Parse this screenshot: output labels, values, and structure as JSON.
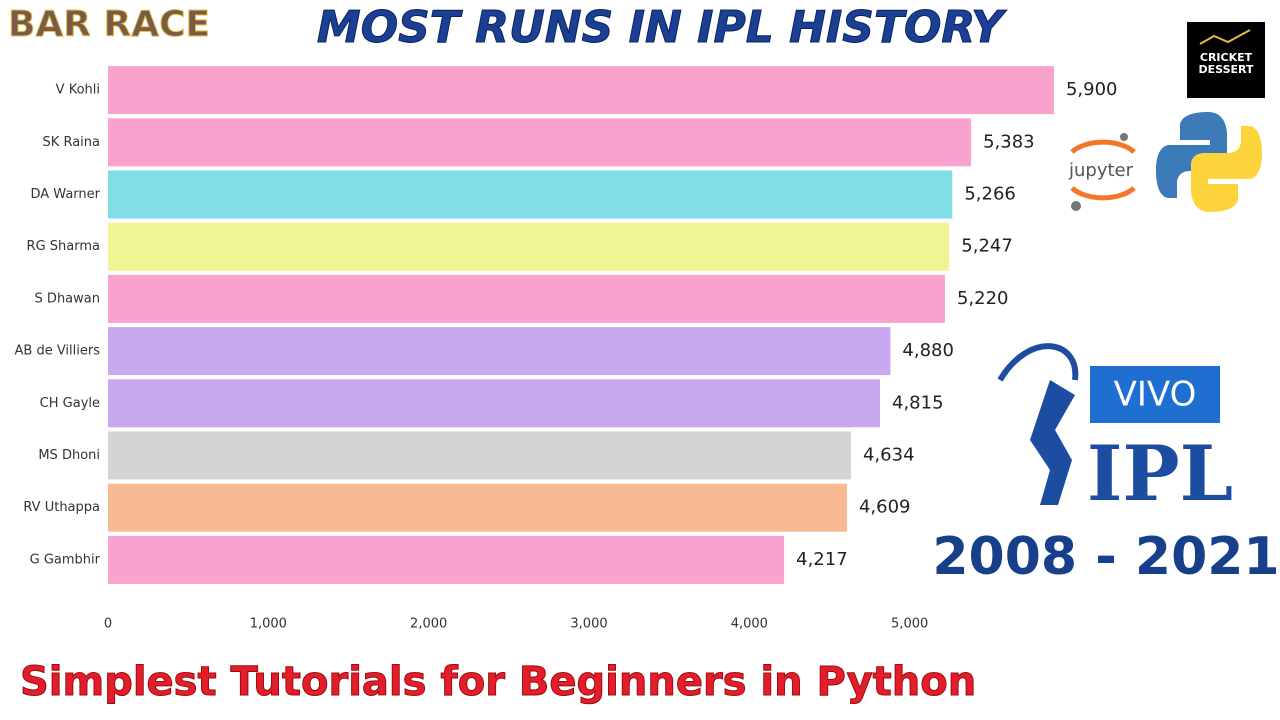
{
  "chart_data": {
    "type": "barh",
    "badge": "BAR RACE",
    "title": "MOST RUNS IN IPL HISTORY",
    "period": "2008 - 2021",
    "footer": "Simplest Tutorials for Beginners in Python",
    "logos": {
      "cricket": [
        "CRICKET",
        "DESSERT"
      ],
      "jupyter": "jupyter",
      "sponsor": "VIVO",
      "league": "IPL"
    },
    "categories": [
      "V Kohli",
      "SK Raina",
      "DA Warner",
      "RG Sharma",
      "S Dhawan",
      "AB de Villiers",
      "CH Gayle",
      "MS Dhoni",
      "RV Uthappa",
      "G Gambhir"
    ],
    "values": [
      5900,
      5383,
      5266,
      5247,
      5220,
      4880,
      4815,
      4634,
      4609,
      4217
    ],
    "value_labels": [
      "5,900",
      "5,383",
      "5,266",
      "5,247",
      "5,220",
      "4,880",
      "4,815",
      "4,634",
      "4,609",
      "4,217"
    ],
    "colors": [
      "#f7a3cd",
      "#f7a3cd",
      "#7fdde6",
      "#eef592",
      "#f7a3cd",
      "#c8a8ee",
      "#c8a8ee",
      "#d4d4d4",
      "#f7ba92",
      "#f7a3cd"
    ],
    "xlim": [
      0,
      6000
    ],
    "xticks": [
      0,
      {
        "value": 1000,
        "label": "1,000"
      },
      {
        "value": 2000,
        "label": "2,000"
      },
      {
        "value": 3000,
        "label": "3,000"
      },
      {
        "value": 4000,
        "label": "4,000"
      },
      {
        "value": 5000,
        "label": "5,000"
      }
    ],
    "grid": false
  }
}
